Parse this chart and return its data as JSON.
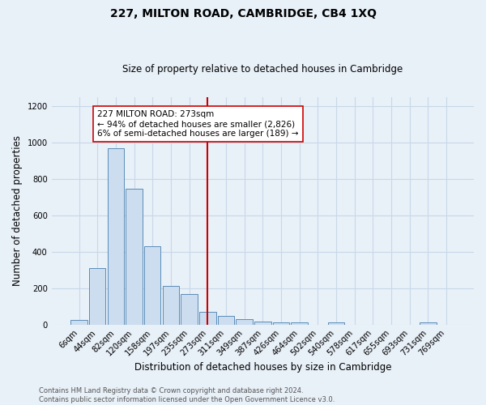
{
  "title": "227, MILTON ROAD, CAMBRIDGE, CB4 1XQ",
  "subtitle": "Size of property relative to detached houses in Cambridge",
  "xlabel": "Distribution of detached houses by size in Cambridge",
  "ylabel": "Number of detached properties",
  "categories": [
    "6sqm",
    "44sqm",
    "82sqm",
    "120sqm",
    "158sqm",
    "197sqm",
    "235sqm",
    "273sqm",
    "311sqm",
    "349sqm",
    "387sqm",
    "426sqm",
    "464sqm",
    "502sqm",
    "540sqm",
    "578sqm",
    "617sqm",
    "655sqm",
    "693sqm",
    "731sqm",
    "769sqm"
  ],
  "values": [
    25,
    310,
    970,
    748,
    430,
    215,
    168,
    72,
    48,
    30,
    18,
    15,
    13,
    0,
    12,
    0,
    0,
    0,
    0,
    14,
    0
  ],
  "bar_color": "#ccddf0",
  "bar_edge_color": "#5b8db8",
  "vline_x_index": 7,
  "vline_color": "#cc0000",
  "annotation_text": "227 MILTON ROAD: 273sqm\n← 94% of detached houses are smaller (2,826)\n6% of semi-detached houses are larger (189) →",
  "annotation_box_color": "#ffffff",
  "annotation_box_edge": "#cc0000",
  "grid_color": "#c8d8e8",
  "background_color": "#e8f0f8",
  "footer_text": "Contains HM Land Registry data © Crown copyright and database right 2024.\nContains public sector information licensed under the Open Government Licence v3.0.",
  "ylim": [
    0,
    1250
  ],
  "yticks": [
    0,
    200,
    400,
    600,
    800,
    1000,
    1200
  ]
}
